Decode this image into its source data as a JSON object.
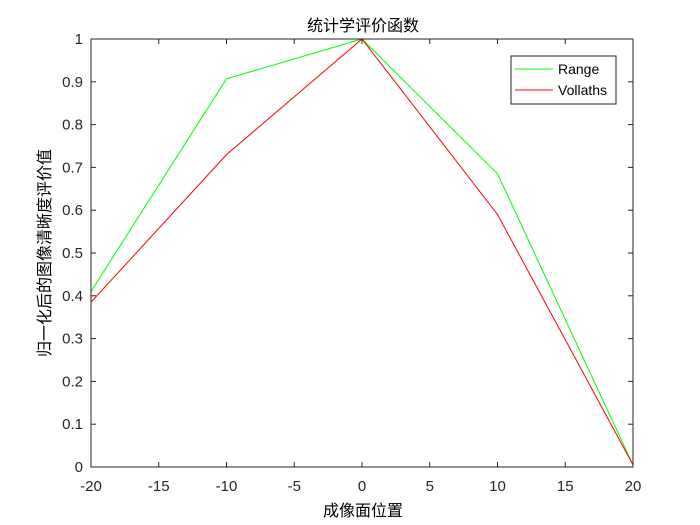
{
  "chart_data": {
    "type": "line",
    "title": "统计学评价函数",
    "xlabel": "成像面位置",
    "ylabel": "归一化后的图像清晰度评价值",
    "x": [
      -20,
      -10,
      0,
      10,
      20
    ],
    "xlim": [
      -20,
      20
    ],
    "ylim": [
      0,
      1
    ],
    "xticks": [
      "-20",
      "-15",
      "-10",
      "-5",
      "0",
      "5",
      "10",
      "15",
      "20"
    ],
    "yticks": [
      "0",
      "0.1",
      "0.2",
      "0.3",
      "0.4",
      "0.5",
      "0.6",
      "0.7",
      "0.8",
      "0.9",
      "1"
    ],
    "grid": false,
    "legend_position": "top-right",
    "series": [
      {
        "name": "Range",
        "color": "#00ff00",
        "values": [
          0.41,
          0.907,
          1.0,
          0.685,
          0.005
        ]
      },
      {
        "name": "Vollaths",
        "color": "#ff0000",
        "values": [
          0.385,
          0.73,
          1.0,
          0.59,
          0.005
        ]
      }
    ]
  }
}
